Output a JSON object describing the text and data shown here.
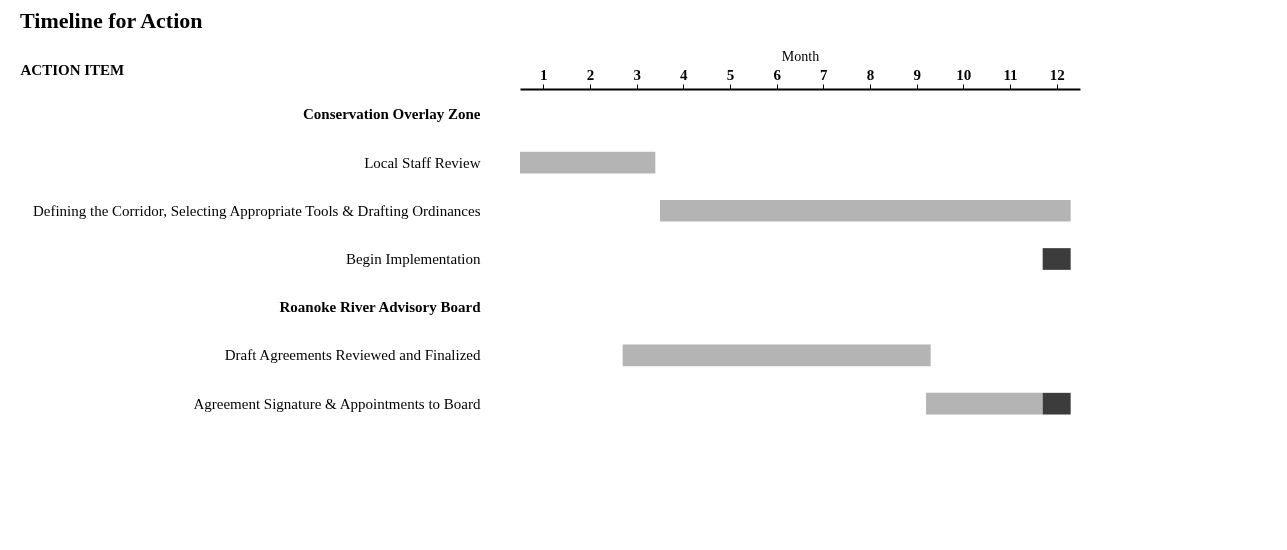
{
  "chart_data": {
    "type": "bar",
    "orientation": "horizontal",
    "title": "Timeline for Action",
    "xlabel": "Month",
    "ylabel": "ACTION ITEM",
    "categories": [
      "Conservation Overlay Zone",
      "Local Staff Review",
      "Defining the Corridor, Selecting Appropriate Tools & Drafting Ordinances",
      "Begin Implementation",
      "Roanoke River Advisory Board",
      "Draft Agreements Reviewed and Finalized",
      "Agreement Signature & Appointments to Board"
    ],
    "series": [
      {
        "color": "#b4b4b4",
        "base": [
          null,
          0.5,
          3.5,
          null,
          null,
          2.7,
          9.2
        ],
        "values": [
          null,
          2.9,
          8.8,
          null,
          null,
          6.6,
          2.5
        ]
      },
      {
        "color": "#3c3c3c",
        "base": [
          null,
          null,
          null,
          11.7,
          null,
          null,
          11.7
        ],
        "values": [
          null,
          null,
          null,
          0.6,
          null,
          null,
          0.6
        ]
      }
    ],
    "xlim": [
      0.5,
      12.5
    ],
    "xticks": [
      1,
      2,
      3,
      4,
      5,
      6,
      7,
      8,
      9,
      10,
      11,
      12
    ],
    "grid": false,
    "legend": false
  }
}
